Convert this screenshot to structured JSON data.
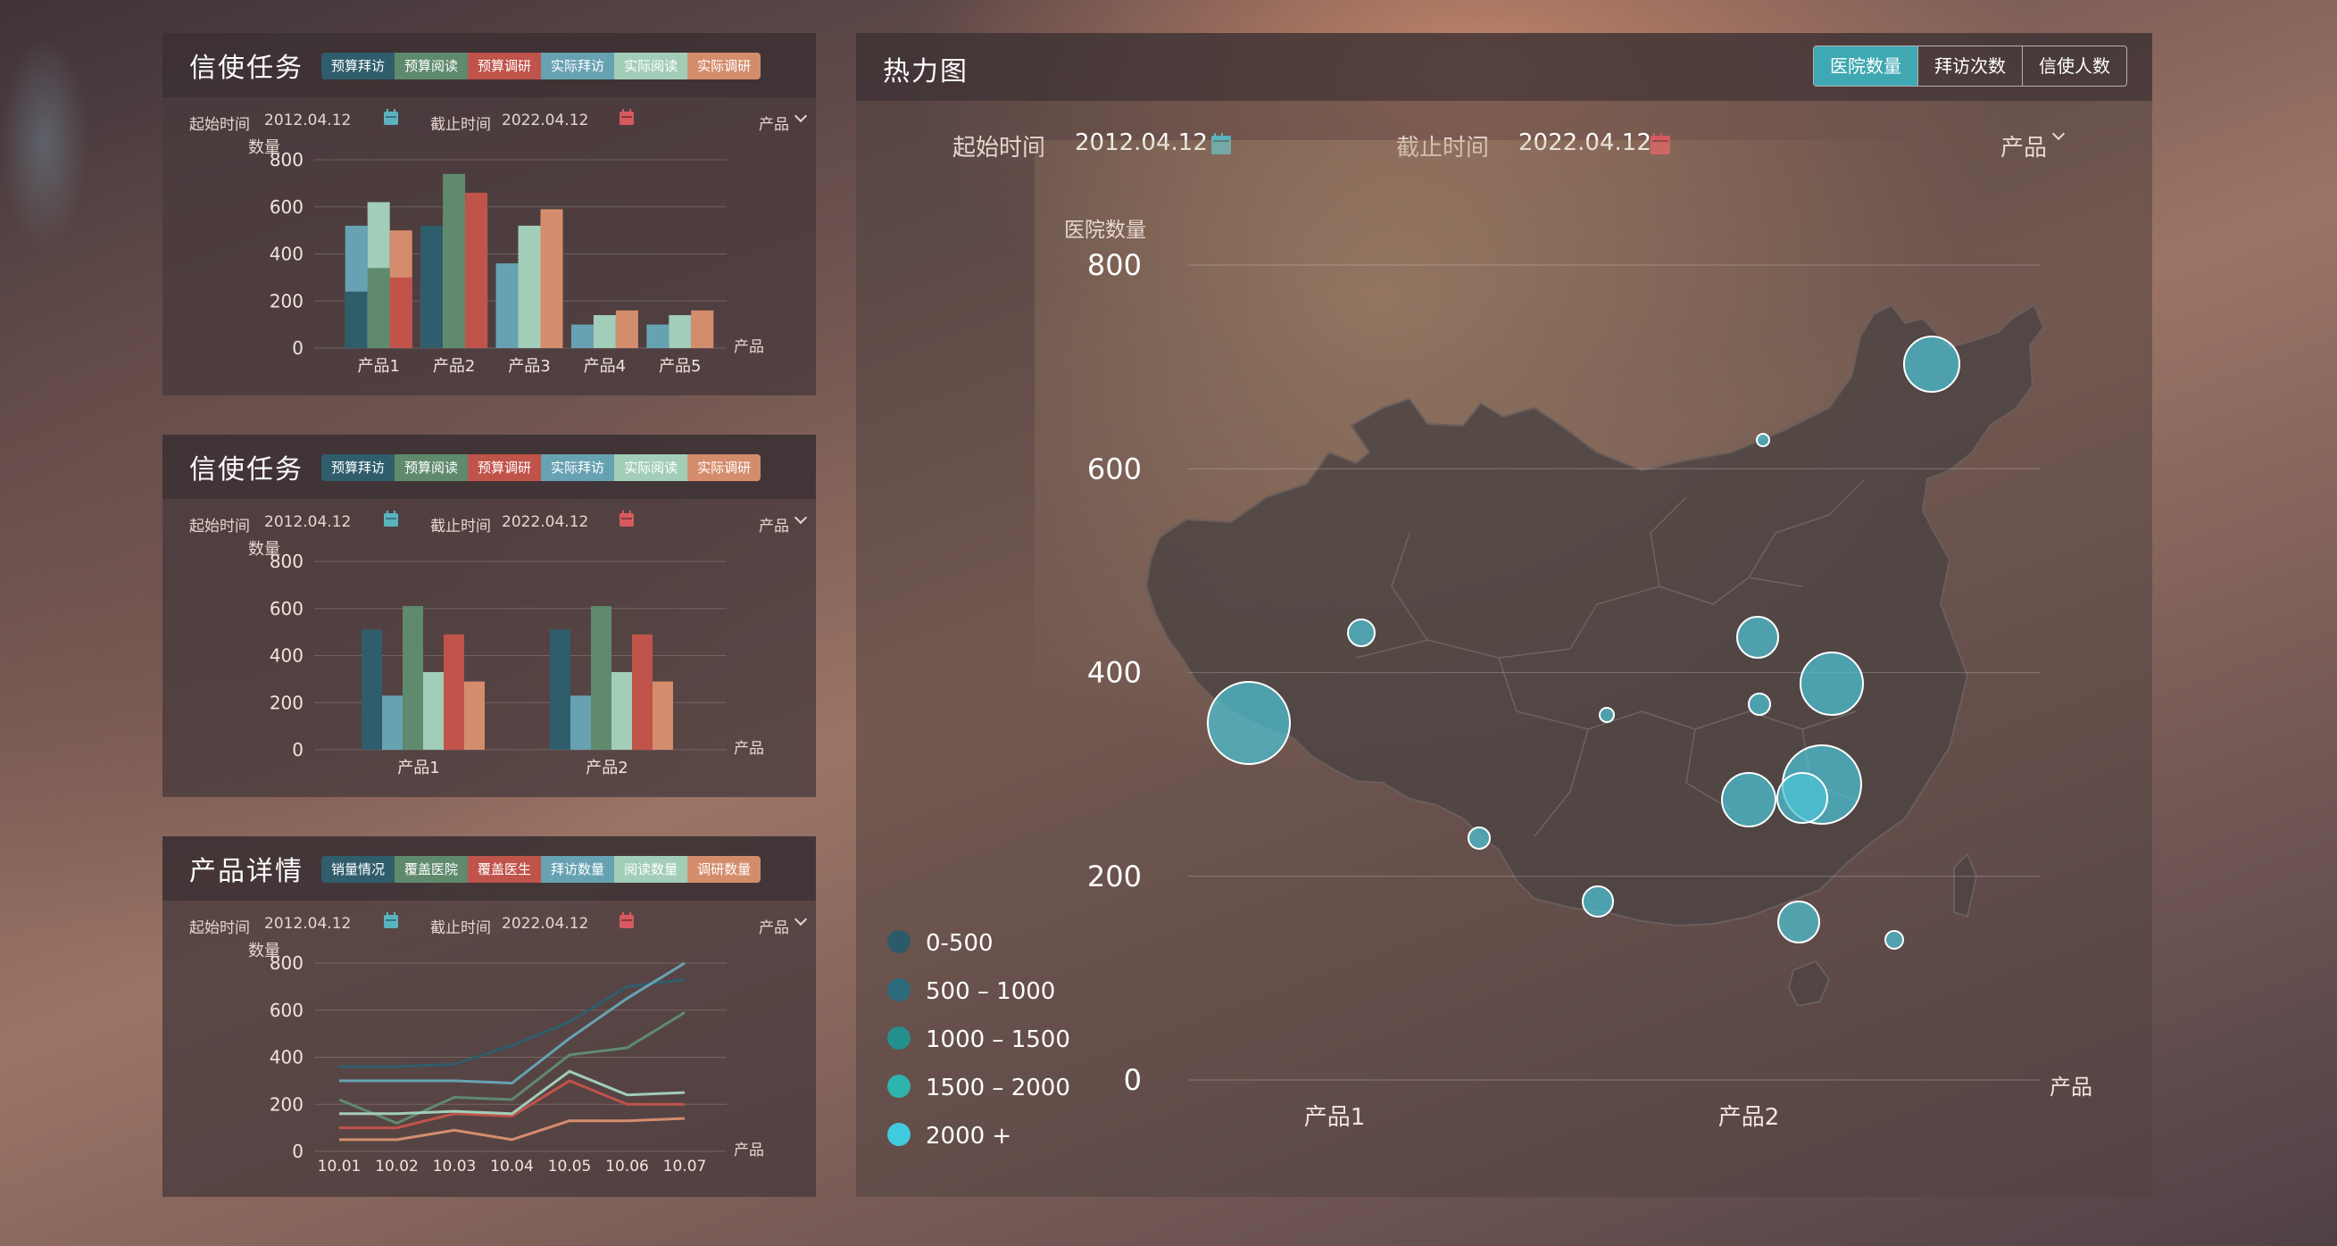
{
  "colors": {
    "s1": "#2f5d6c",
    "s2": "#67a2b2",
    "s3": "#5f8a6e",
    "s4": "#a2cdb9",
    "s5": "#c0534a",
    "s6": "#d48d6c",
    "cal_teal": "#5ab3bf",
    "cal_red": "#d65a60"
  },
  "panel1": {
    "title": "信使任务",
    "legend": [
      {
        "label": "预算拜访",
        "color": "#2f5d6c"
      },
      {
        "label": "预算阅读",
        "color": "#5f8a6e"
      },
      {
        "label": "预算调研",
        "color": "#c0534a"
      },
      {
        "label": "实际拜访",
        "color": "#67a2b2"
      },
      {
        "label": "实际阅读",
        "color": "#a2cdb9"
      },
      {
        "label": "实际调研",
        "color": "#d48d6c"
      }
    ],
    "start_label": "起始时间",
    "start_value": "2012.04.12",
    "end_label": "截止时间",
    "end_value": "2022.04.12",
    "product_select": "产品"
  },
  "panel2": {
    "title": "信使任务",
    "legend": [
      {
        "label": "预算拜访",
        "color": "#2f5d6c"
      },
      {
        "label": "预算阅读",
        "color": "#5f8a6e"
      },
      {
        "label": "预算调研",
        "color": "#c0534a"
      },
      {
        "label": "实际拜访",
        "color": "#67a2b2"
      },
      {
        "label": "实际阅读",
        "color": "#a2cdb9"
      },
      {
        "label": "实际调研",
        "color": "#d48d6c"
      }
    ],
    "start_label": "起始时间",
    "start_value": "2012.04.12",
    "end_label": "截止时间",
    "end_value": "2022.04.12",
    "product_select": "产品"
  },
  "panel3": {
    "title": "产品详情",
    "legend": [
      {
        "label": "销量情况",
        "color": "#2f5d6c"
      },
      {
        "label": "覆盖医院",
        "color": "#5f8a6e"
      },
      {
        "label": "覆盖医生",
        "color": "#c0534a"
      },
      {
        "label": "拜访数量",
        "color": "#67a2b2"
      },
      {
        "label": "阅读数量",
        "color": "#a2cdb9"
      },
      {
        "label": "调研数量",
        "color": "#d48d6c"
      }
    ],
    "start_label": "起始时间",
    "start_value": "2012.04.12",
    "end_label": "截止时间",
    "end_value": "2022.04.12",
    "product_select": "产品"
  },
  "map_panel": {
    "title": "热力图",
    "tabs": [
      "医院数量",
      "拜访次数",
      "信使人数"
    ],
    "active_tab": 0,
    "start_label": "起始时间",
    "start_value": "2012.04.12",
    "end_label": "截止时间",
    "end_value": "2022.04.12",
    "product_select": "产品"
  },
  "chart_data": [
    {
      "type": "bar",
      "ylabel": "数量",
      "xlabel": "产品",
      "ylim": [
        0,
        800
      ],
      "yticks": [
        0,
        200,
        400,
        600,
        800
      ],
      "grid": true,
      "categories": [
        "产品1",
        "产品2",
        "产品3",
        "产品4",
        "产品5"
      ],
      "series": [
        {
          "name": "预算拜访",
          "values": [
            240,
            520,
            0,
            0,
            0
          ]
        },
        {
          "name": "预算阅读",
          "values": [
            340,
            740,
            0,
            0,
            0
          ]
        },
        {
          "name": "预算调研",
          "values": [
            300,
            660,
            0,
            0,
            0
          ]
        },
        {
          "name": "实际拜访",
          "values": [
            520,
            280,
            360,
            100,
            100
          ]
        },
        {
          "name": "实际阅读",
          "values": [
            620,
            560,
            520,
            140,
            140
          ]
        },
        {
          "name": "实际调研",
          "values": [
            500,
            600,
            590,
            160,
            160
          ]
        }
      ]
    },
    {
      "type": "bar",
      "ylabel": "数量",
      "xlabel": "产品",
      "ylim": [
        0,
        800
      ],
      "yticks": [
        0,
        200,
        400,
        600,
        800
      ],
      "grid": true,
      "categories": [
        "产品1",
        "产品2"
      ],
      "series": [
        {
          "name": "预算拜访",
          "values": [
            510,
            510
          ]
        },
        {
          "name": "实际拜访",
          "values": [
            230,
            230
          ]
        },
        {
          "name": "预算阅读",
          "values": [
            610,
            610
          ]
        },
        {
          "name": "实际阅读",
          "values": [
            330,
            330
          ]
        },
        {
          "name": "预算调研",
          "values": [
            490,
            490
          ]
        },
        {
          "name": "实际调研",
          "values": [
            290,
            290
          ]
        }
      ]
    },
    {
      "type": "line",
      "ylabel": "数量",
      "xlabel": "产品",
      "ylim": [
        0,
        800
      ],
      "yticks": [
        0,
        200,
        400,
        600,
        800
      ],
      "grid": true,
      "x": [
        "10.01",
        "10.02",
        "10.03",
        "10.04",
        "10.05",
        "10.06",
        "10.07"
      ],
      "series": [
        {
          "name": "销量情况",
          "values": [
            360,
            360,
            370,
            450,
            550,
            700,
            730
          ]
        },
        {
          "name": "覆盖医院",
          "values": [
            220,
            120,
            230,
            220,
            410,
            440,
            590
          ]
        },
        {
          "name": "覆盖医生",
          "values": [
            100,
            100,
            160,
            150,
            300,
            200,
            200
          ]
        },
        {
          "name": "拜访数量",
          "values": [
            300,
            300,
            300,
            290,
            480,
            650,
            800
          ]
        },
        {
          "name": "阅读数量",
          "values": [
            160,
            160,
            170,
            160,
            340,
            240,
            250
          ]
        },
        {
          "name": "调研数量",
          "values": [
            50,
            50,
            90,
            50,
            130,
            130,
            140
          ]
        }
      ]
    },
    {
      "type": "scatter",
      "ylabel": "医院数量",
      "xlabel": "产品",
      "ylim": [
        0,
        800
      ],
      "yticks": [
        0,
        200,
        400,
        600,
        800
      ],
      "grid": true,
      "categories": [
        "产品1",
        "产品2"
      ],
      "legend_placement": "bottom-left",
      "legend": [
        {
          "label": "0-500",
          "color": "#2b5b68"
        },
        {
          "label": "500 – 1000",
          "color": "#2c6b7c"
        },
        {
          "label": "1000 – 1500",
          "color": "#24908e"
        },
        {
          "label": "1500 – 2000",
          "color": "#2eb3ad"
        },
        {
          "label": "2000 +",
          "color": "#41cbe0"
        }
      ]
    }
  ]
}
